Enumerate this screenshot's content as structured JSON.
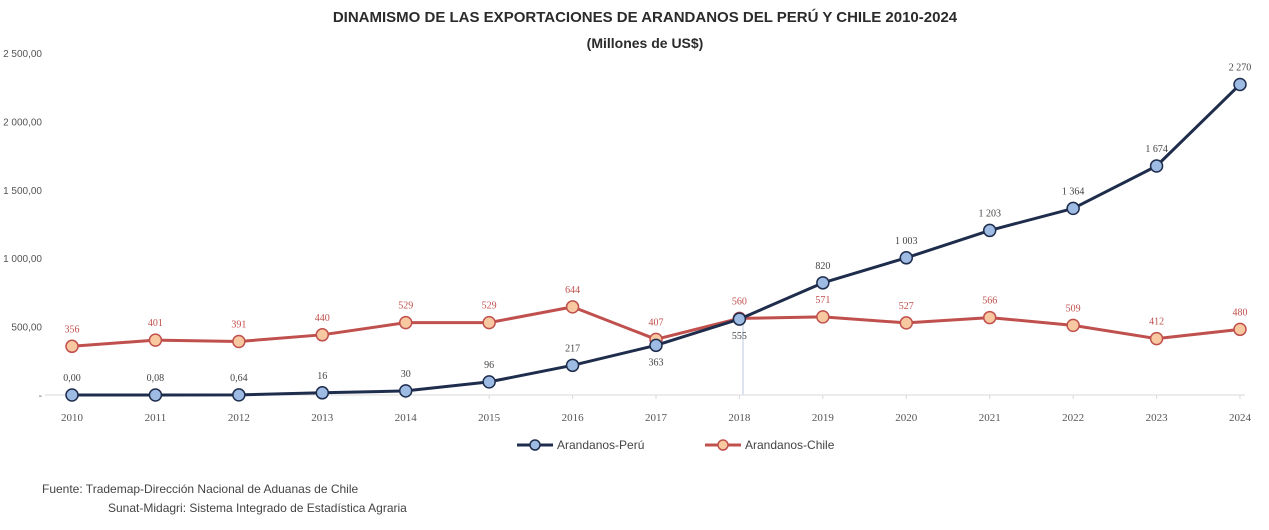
{
  "chart_data": {
    "type": "line",
    "title": "DINAMISMO DE LAS EXPORTACIONES DE ARANDANOS DEL PERÚ Y CHILE  2010-2024",
    "subtitle": "(Millones de US$)",
    "xlabel": "",
    "ylabel": "",
    "ylim": [
      0,
      2500
    ],
    "yticks": [
      0,
      500,
      1000,
      1500,
      2000,
      2500
    ],
    "ytick_labels": [
      "-",
      "500,00",
      "1 000,00",
      "1 500,00",
      "2 000,00",
      "2 500,00"
    ],
    "grid": false,
    "legend_position": "bottom",
    "categories": [
      "2010",
      "2011",
      "2012",
      "2013",
      "2014",
      "2015",
      "2016",
      "2017",
      "2018",
      "2019",
      "2020",
      "2021",
      "2022",
      "2023",
      "2024"
    ],
    "series": [
      {
        "name": "Arandanos-Perú",
        "color": "#1f2d4d",
        "marker_fill": "#9dbbe3",
        "values": [
          0,
          0.08,
          0.64,
          16,
          30,
          96,
          217,
          363,
          555,
          820,
          1003,
          1203,
          1364,
          1674,
          2270
        ],
        "labels": [
          "0,00",
          "0,08",
          "0,64",
          "16",
          "30",
          "96",
          "217",
          "363",
          "555",
          "820",
          "1 003",
          "1 203",
          "1 364",
          "1 674",
          "2 270"
        ]
      },
      {
        "name": "Arandanos-Chile",
        "color": "#c0504d",
        "marker_fill": "#f8c9a0",
        "values": [
          356,
          401,
          391,
          440,
          529,
          529,
          644,
          407,
          560,
          571,
          527,
          566,
          509,
          412,
          480
        ],
        "labels": [
          "356",
          "401",
          "391",
          "440",
          "529",
          "529",
          "644",
          "407",
          "560",
          "571",
          "527",
          "566",
          "509",
          "412",
          "480"
        ]
      }
    ]
  },
  "source": {
    "line1": "Fuente: Trademap-Dirección Nacional de Aduanas de Chile",
    "line2": "Sunat-Midagri: Sistema Integrado de Estadística Agraria"
  }
}
